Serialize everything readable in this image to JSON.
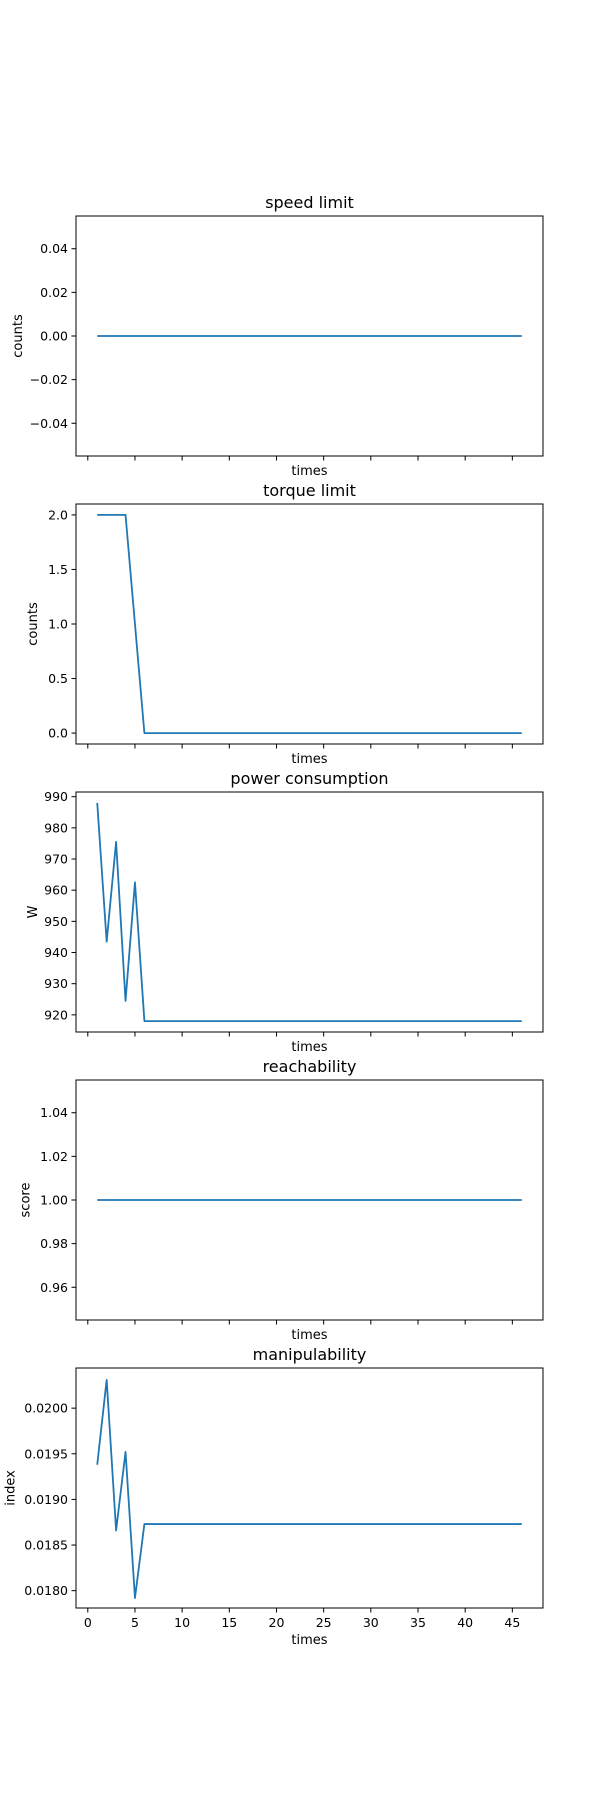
{
  "colors": {
    "series": "#1f77b4"
  },
  "chart_data": [
    {
      "type": "line",
      "title": "speed limit",
      "xlabel": "times",
      "ylabel": "counts",
      "xlim": [
        -1.25,
        48.25
      ],
      "ylim": [
        -0.055,
        0.055
      ],
      "xticks": [
        0,
        5,
        10,
        15,
        20,
        25,
        30,
        35,
        40,
        45
      ],
      "xtick_labels_visible": false,
      "yticks": [
        -0.04,
        -0.02,
        0.0,
        0.02,
        0.04
      ],
      "ytick_labels": [
        "−0.04",
        "−0.02",
        "0.00",
        "0.02",
        "0.04"
      ],
      "series": [
        {
          "x": [
            1,
            46
          ],
          "y": [
            0,
            0
          ]
        }
      ]
    },
    {
      "type": "line",
      "title": "torque limit",
      "xlabel": "times",
      "ylabel": "counts",
      "xlim": [
        -1.25,
        48.25
      ],
      "ylim": [
        -0.1,
        2.1
      ],
      "xticks": [
        0,
        5,
        10,
        15,
        20,
        25,
        30,
        35,
        40,
        45
      ],
      "xtick_labels_visible": false,
      "yticks": [
        0.0,
        0.5,
        1.0,
        1.5,
        2.0
      ],
      "ytick_labels": [
        "0.0",
        "0.5",
        "1.0",
        "1.5",
        "2.0"
      ],
      "series": [
        {
          "x": [
            1,
            2,
            3,
            4,
            5,
            6,
            46
          ],
          "y": [
            2,
            2,
            2,
            2,
            1,
            0,
            0
          ]
        }
      ]
    },
    {
      "type": "line",
      "title": "power consumption",
      "xlabel": "times",
      "ylabel": "W",
      "xlim": [
        -1.25,
        48.25
      ],
      "ylim": [
        914.5,
        991.5
      ],
      "xticks": [
        0,
        5,
        10,
        15,
        20,
        25,
        30,
        35,
        40,
        45
      ],
      "xtick_labels_visible": false,
      "yticks": [
        920,
        930,
        940,
        950,
        960,
        970,
        980,
        990
      ],
      "ytick_labels": [
        "920",
        "930",
        "940",
        "950",
        "960",
        "970",
        "980",
        "990"
      ],
      "series": [
        {
          "x": [
            1,
            2,
            3,
            4,
            5,
            6,
            46
          ],
          "y": [
            988,
            943.5,
            975.5,
            924.5,
            962.5,
            918,
            918
          ]
        }
      ]
    },
    {
      "type": "line",
      "title": "reachability",
      "xlabel": "times",
      "ylabel": "score",
      "xlim": [
        -1.25,
        48.25
      ],
      "ylim": [
        0.945,
        1.055
      ],
      "xticks": [
        0,
        5,
        10,
        15,
        20,
        25,
        30,
        35,
        40,
        45
      ],
      "xtick_labels_visible": false,
      "yticks": [
        0.96,
        0.98,
        1.0,
        1.02,
        1.04
      ],
      "ytick_labels": [
        "0.96",
        "0.98",
        "1.00",
        "1.02",
        "1.04"
      ],
      "series": [
        {
          "x": [
            1,
            46
          ],
          "y": [
            1,
            1
          ]
        }
      ]
    },
    {
      "type": "line",
      "title": "manipulability",
      "xlabel": "times",
      "ylabel": "index",
      "xlim": [
        -1.25,
        48.25
      ],
      "ylim": [
        0.01781,
        0.02044
      ],
      "xticks": [
        0,
        5,
        10,
        15,
        20,
        25,
        30,
        35,
        40,
        45
      ],
      "xtick_labels_visible": true,
      "xtick_labels": [
        "0",
        "5",
        "10",
        "15",
        "20",
        "25",
        "30",
        "35",
        "40",
        "45"
      ],
      "yticks": [
        0.018,
        0.0185,
        0.019,
        0.0195,
        0.02
      ],
      "ytick_labels": [
        "0.0180",
        "0.0185",
        "0.0190",
        "0.0195",
        "0.0200"
      ],
      "series": [
        {
          "x": [
            1,
            2,
            3,
            4,
            5,
            6,
            46
          ],
          "y": [
            0.01938,
            0.02031,
            0.01866,
            0.01952,
            0.01792,
            0.01873,
            0.01873
          ]
        }
      ]
    }
  ]
}
